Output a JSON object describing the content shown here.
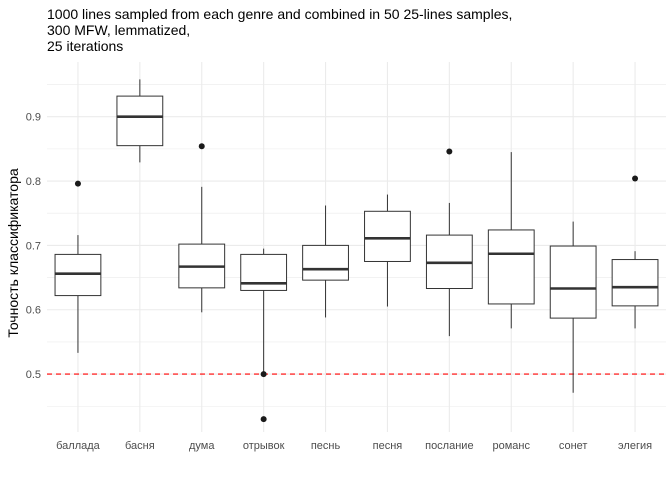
{
  "chart_data": {
    "type": "boxplot",
    "title_lines": [
      "1000 lines sampled from each genre and combined in 50 25-lines samples,",
      "300 MFW, lemmatized,",
      "25 iterations"
    ],
    "xlabel": "",
    "ylabel": "Точность классификатора",
    "ylim": [
      0.41,
      0.985
    ],
    "y_ticks": [
      0.5,
      0.6,
      0.7,
      0.8,
      0.9
    ],
    "y_tick_labels": [
      "0.5",
      "0.6",
      "0.7",
      "0.8",
      "0.9"
    ],
    "grid": true,
    "reference_line": {
      "value": 0.5,
      "color": "#ff0000",
      "style": "dashed"
    },
    "categories": [
      "баллада",
      "басня",
      "дума",
      "отрывок",
      "песнь",
      "песня",
      "послание",
      "романс",
      "сонет",
      "элегия"
    ],
    "boxes": [
      {
        "category": "баллада",
        "whisker_low": 0.533,
        "q1": 0.622,
        "median": 0.656,
        "q3": 0.686,
        "whisker_high": 0.716,
        "outliers": [
          0.796
        ]
      },
      {
        "category": "басня",
        "whisker_low": 0.829,
        "q1": 0.855,
        "median": 0.9,
        "q3": 0.932,
        "whisker_high": 0.958,
        "outliers": []
      },
      {
        "category": "дума",
        "whisker_low": 0.596,
        "q1": 0.634,
        "median": 0.667,
        "q3": 0.702,
        "whisker_high": 0.791,
        "outliers": [
          0.854
        ]
      },
      {
        "category": "отрывок",
        "whisker_low": 0.5,
        "q1": 0.63,
        "median": 0.641,
        "q3": 0.686,
        "whisker_high": 0.695,
        "outliers": [
          0.5,
          0.43
        ]
      },
      {
        "category": "песнь",
        "whisker_low": 0.588,
        "q1": 0.646,
        "median": 0.663,
        "q3": 0.7,
        "whisker_high": 0.762,
        "outliers": []
      },
      {
        "category": "песня",
        "whisker_low": 0.605,
        "q1": 0.675,
        "median": 0.711,
        "q3": 0.753,
        "whisker_high": 0.779,
        "outliers": []
      },
      {
        "category": "послание",
        "whisker_low": 0.559,
        "q1": 0.633,
        "median": 0.673,
        "q3": 0.716,
        "whisker_high": 0.766,
        "outliers": [
          0.846
        ]
      },
      {
        "category": "романс",
        "whisker_low": 0.571,
        "q1": 0.609,
        "median": 0.687,
        "q3": 0.724,
        "whisker_high": 0.845,
        "outliers": []
      },
      {
        "category": "сонет",
        "whisker_low": 0.471,
        "q1": 0.587,
        "median": 0.633,
        "q3": 0.699,
        "whisker_high": 0.737,
        "outliers": []
      },
      {
        "category": "элегия",
        "whisker_low": 0.571,
        "q1": 0.606,
        "median": 0.635,
        "q3": 0.678,
        "whisker_high": 0.691,
        "outliers": [
          0.804
        ]
      }
    ],
    "colors": {
      "box_stroke": "#333333",
      "box_fill": "#ffffff",
      "grid": "#ebebeb",
      "outlier": "#1a1a1a",
      "reference": "#ff0000"
    }
  }
}
